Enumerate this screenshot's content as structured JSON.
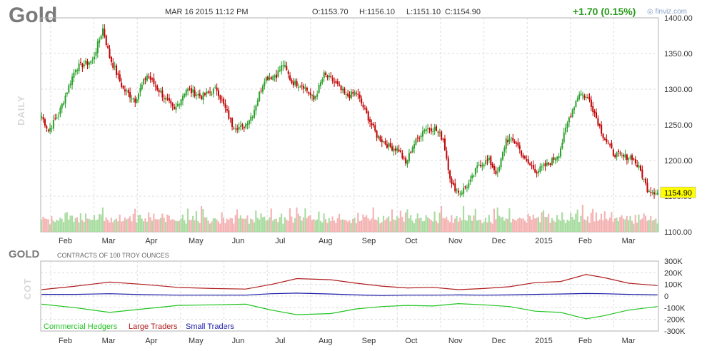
{
  "header": {
    "symbol": "Gold",
    "datetime": "MAR 16 2015 11:12 PM",
    "open": "O:1153.70",
    "high": "H:1156.10",
    "low": "L:1151.10",
    "close": "C:1154.90",
    "change": "+1.70 (0.15%)",
    "brand": "finviz.com",
    "period_label": "DAILY"
  },
  "cot_panel": {
    "title": "GOLD",
    "units": "CONTRACTS OF 100 TROY OUNCES",
    "side_label": "COT"
  },
  "colors": {
    "up": "#2ca02c",
    "down": "#c00000",
    "volume_up": "#a8dca0",
    "volume_down": "#f4b3b3",
    "commercial": "#21c421",
    "large": "#b01e1e",
    "small": "#1a1aa6",
    "price_tag": "#ffff00"
  },
  "chart_data": [
    {
      "type": "candlestick",
      "title": "Gold",
      "x_tick_labels": [
        "Feb",
        "Mar",
        "Apr",
        "May",
        "Jun",
        "Jul",
        "Aug",
        "Sep",
        "Oct",
        "Nov",
        "Dec",
        "2015",
        "Feb",
        "Mar"
      ],
      "y_tick_labels": [
        "1400.00",
        "1350.00",
        "1300.00",
        "1250.00",
        "1200.00",
        "1150.00",
        "1100.00"
      ],
      "ylim": [
        1100,
        1400
      ],
      "last_price": "1154.90",
      "grid": true,
      "close_anchors": [
        {
          "x": 0,
          "y": 1262
        },
        {
          "x": 4,
          "y": 1242
        },
        {
          "x": 10,
          "y": 1265
        },
        {
          "x": 20,
          "y": 1330
        },
        {
          "x": 30,
          "y": 1340
        },
        {
          "x": 36,
          "y": 1385
        },
        {
          "x": 40,
          "y": 1345
        },
        {
          "x": 48,
          "y": 1300
        },
        {
          "x": 55,
          "y": 1285
        },
        {
          "x": 62,
          "y": 1320
        },
        {
          "x": 70,
          "y": 1295
        },
        {
          "x": 78,
          "y": 1270
        },
        {
          "x": 85,
          "y": 1300
        },
        {
          "x": 94,
          "y": 1290
        },
        {
          "x": 103,
          "y": 1300
        },
        {
          "x": 112,
          "y": 1250
        },
        {
          "x": 118,
          "y": 1245
        },
        {
          "x": 124,
          "y": 1265
        },
        {
          "x": 131,
          "y": 1315
        },
        {
          "x": 138,
          "y": 1320
        },
        {
          "x": 142,
          "y": 1335
        },
        {
          "x": 147,
          "y": 1310
        },
        {
          "x": 154,
          "y": 1305
        },
        {
          "x": 160,
          "y": 1285
        },
        {
          "x": 166,
          "y": 1320
        },
        {
          "x": 172,
          "y": 1310
        },
        {
          "x": 179,
          "y": 1290
        },
        {
          "x": 185,
          "y": 1295
        },
        {
          "x": 191,
          "y": 1265
        },
        {
          "x": 197,
          "y": 1235
        },
        {
          "x": 204,
          "y": 1220
        },
        {
          "x": 210,
          "y": 1215
        },
        {
          "x": 214,
          "y": 1195
        },
        {
          "x": 218,
          "y": 1220
        },
        {
          "x": 225,
          "y": 1245
        },
        {
          "x": 231,
          "y": 1245
        },
        {
          "x": 236,
          "y": 1230
        },
        {
          "x": 241,
          "y": 1165
        },
        {
          "x": 246,
          "y": 1155
        },
        {
          "x": 252,
          "y": 1170
        },
        {
          "x": 257,
          "y": 1195
        },
        {
          "x": 263,
          "y": 1200
        },
        {
          "x": 268,
          "y": 1180
        },
        {
          "x": 273,
          "y": 1230
        },
        {
          "x": 279,
          "y": 1225
        },
        {
          "x": 284,
          "y": 1200
        },
        {
          "x": 291,
          "y": 1185
        },
        {
          "x": 298,
          "y": 1195
        },
        {
          "x": 304,
          "y": 1210
        },
        {
          "x": 310,
          "y": 1260
        },
        {
          "x": 316,
          "y": 1295
        },
        {
          "x": 322,
          "y": 1285
        },
        {
          "x": 326,
          "y": 1260
        },
        {
          "x": 330,
          "y": 1235
        },
        {
          "x": 336,
          "y": 1210
        },
        {
          "x": 342,
          "y": 1205
        },
        {
          "x": 347,
          "y": 1205
        },
        {
          "x": 352,
          "y": 1185
        },
        {
          "x": 356,
          "y": 1160
        },
        {
          "x": 362,
          "y": 1155
        }
      ],
      "volume_pattern": [
        0.45,
        0.55,
        0.4,
        0.6,
        0.5,
        0.35,
        0.7,
        0.5,
        0.4,
        0.55,
        0.45,
        0.65,
        0.5,
        0.4,
        0.6,
        0.75,
        0.45,
        0.5,
        0.55,
        0.4
      ],
      "volume_spikes": [
        {
          "x": 36,
          "v": 0.9
        },
        {
          "x": 94,
          "v": 0.95
        },
        {
          "x": 150,
          "v": 0.9
        },
        {
          "x": 235,
          "v": 0.95
        },
        {
          "x": 248,
          "v": 0.95
        },
        {
          "x": 268,
          "v": 0.9
        },
        {
          "x": 318,
          "v": 1.0
        },
        {
          "x": 324,
          "v": 0.85
        }
      ]
    },
    {
      "type": "line",
      "title": "GOLD",
      "x_tick_labels": [
        "Feb",
        "Mar",
        "Apr",
        "May",
        "Jun",
        "Jul",
        "Aug",
        "Sep",
        "Oct",
        "Nov",
        "Dec",
        "2015",
        "Feb",
        "Mar"
      ],
      "y_tick_labels": [
        "300K",
        "200K",
        "100K",
        "0",
        "-100K",
        "-200K",
        "-300K"
      ],
      "ylim": [
        -300000,
        300000
      ],
      "series": [
        {
          "name": "Commercial Hedgers",
          "points": [
            [
              0,
              -70000
            ],
            [
              20,
              -100000
            ],
            [
              40,
              -140000
            ],
            [
              60,
              -110000
            ],
            [
              80,
              -80000
            ],
            [
              100,
              -75000
            ],
            [
              120,
              -70000
            ],
            [
              135,
              -120000
            ],
            [
              150,
              -160000
            ],
            [
              170,
              -150000
            ],
            [
              185,
              -110000
            ],
            [
              200,
              -90000
            ],
            [
              215,
              -80000
            ],
            [
              230,
              -85000
            ],
            [
              245,
              -65000
            ],
            [
              260,
              -75000
            ],
            [
              275,
              -90000
            ],
            [
              290,
              -130000
            ],
            [
              305,
              -140000
            ],
            [
              320,
              -195000
            ],
            [
              330,
              -170000
            ],
            [
              345,
              -120000
            ],
            [
              362,
              -90000
            ]
          ]
        },
        {
          "name": "Large Traders",
          "points": [
            [
              0,
              55000
            ],
            [
              20,
              85000
            ],
            [
              40,
              120000
            ],
            [
              60,
              100000
            ],
            [
              80,
              75000
            ],
            [
              100,
              65000
            ],
            [
              120,
              60000
            ],
            [
              135,
              100000
            ],
            [
              150,
              150000
            ],
            [
              170,
              140000
            ],
            [
              185,
              110000
            ],
            [
              200,
              85000
            ],
            [
              215,
              70000
            ],
            [
              230,
              75000
            ],
            [
              245,
              55000
            ],
            [
              260,
              65000
            ],
            [
              275,
              80000
            ],
            [
              290,
              115000
            ],
            [
              305,
              125000
            ],
            [
              320,
              185000
            ],
            [
              330,
              160000
            ],
            [
              345,
              110000
            ],
            [
              362,
              90000
            ]
          ]
        },
        {
          "name": "Small Traders",
          "points": [
            [
              0,
              15000
            ],
            [
              20,
              15000
            ],
            [
              40,
              20000
            ],
            [
              60,
              12000
            ],
            [
              80,
              8000
            ],
            [
              100,
              8000
            ],
            [
              120,
              8000
            ],
            [
              135,
              20000
            ],
            [
              150,
              25000
            ],
            [
              170,
              18000
            ],
            [
              185,
              10000
            ],
            [
              200,
              5000
            ],
            [
              215,
              8000
            ],
            [
              230,
              8000
            ],
            [
              245,
              10000
            ],
            [
              260,
              8000
            ],
            [
              275,
              10000
            ],
            [
              290,
              15000
            ],
            [
              305,
              18000
            ],
            [
              320,
              22000
            ],
            [
              330,
              20000
            ],
            [
              345,
              15000
            ],
            [
              362,
              10000
            ]
          ]
        }
      ]
    }
  ]
}
